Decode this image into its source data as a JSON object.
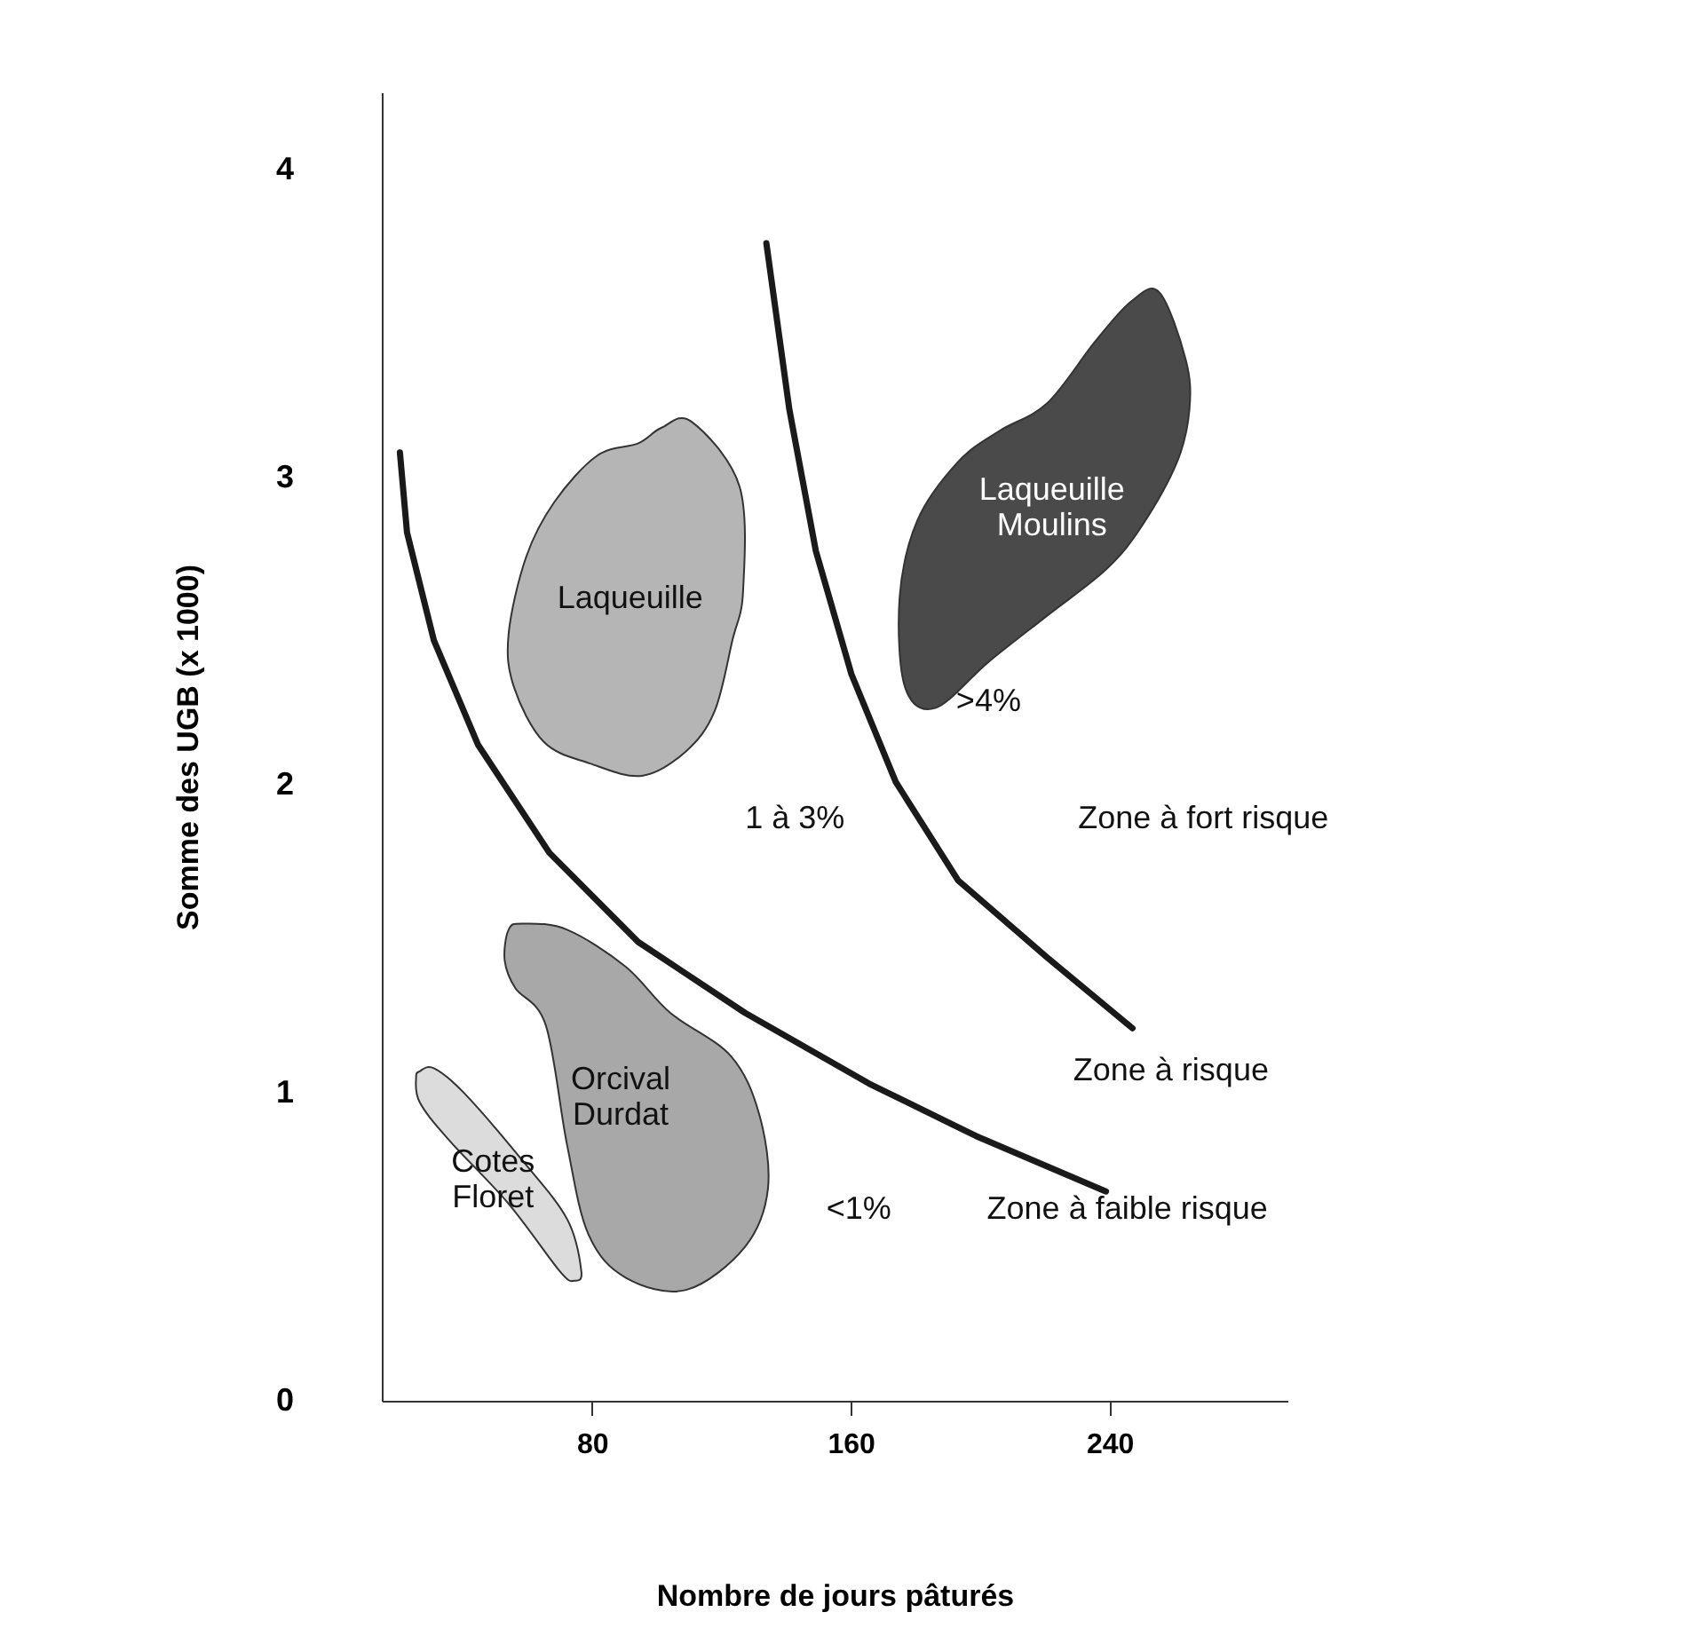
{
  "chart_data": {
    "type": "line",
    "xlabel": "Nombre de jours pâturés",
    "ylabel": "Somme des UGB (x 1000)",
    "xlim": [
      15,
      295
    ],
    "ylim": [
      0,
      4.25
    ],
    "xticks": [
      80,
      160,
      240
    ],
    "yticks": [
      0,
      1,
      2,
      3,
      4
    ],
    "grid": false,
    "marker": "none",
    "line_style": "solid",
    "series": [
      {
        "type": "line",
        "color": "#1a1a1a",
        "x": [
          20.6,
          22.8,
          31.1,
          44.8,
          66.8,
          94.3,
          127.3,
          165.7,
          198.7,
          238.9
        ],
        "values": [
          3.08,
          2.82,
          2.47,
          2.13,
          1.78,
          1.49,
          1.26,
          1.03,
          0.86,
          0.68
        ]
      },
      {
        "type": "line",
        "color": "#1a1a1a",
        "x": [
          133.9,
          141.0,
          149.2,
          160.2,
          173.9,
          193.2,
          220.7,
          247.1
        ],
        "values": [
          3.76,
          3.22,
          2.76,
          2.36,
          2.01,
          1.69,
          1.44,
          1.21
        ]
      },
      {
        "type": "area",
        "name": "Laqueuille",
        "color": "#b5b5b5",
        "x": [
          110.8,
          125.6,
          126.7,
          123.4,
          117.9,
          109.1,
          95.4,
          79.4,
          65.1,
          55.8,
          54.2,
          59.6,
          68.4,
          81.6,
          94.3,
          101.4
        ],
        "values": [
          3.18,
          2.97,
          2.63,
          2.47,
          2.24,
          2.11,
          2.03,
          2.07,
          2.14,
          2.32,
          2.49,
          2.74,
          2.92,
          3.07,
          3.11,
          3.16
        ]
      },
      {
        "type": "area",
        "name": "Laqueuille\nMoulins",
        "color": "#4a4a4a",
        "x": [
          255.4,
          263.6,
          264.7,
          260.9,
          249.9,
          238.9,
          220.7,
          202.6,
          186.1,
          176.7,
          175.1,
          180.6,
          193.2,
          205.9,
          220.7,
          235.5,
          246.6
        ],
        "values": [
          3.6,
          3.38,
          3.22,
          3.05,
          2.84,
          2.7,
          2.55,
          2.4,
          2.25,
          2.32,
          2.61,
          2.86,
          3.05,
          3.15,
          3.24,
          3.44,
          3.57
        ]
      },
      {
        "type": "area",
        "name": "Orcival\nDurdat",
        "color": "#a8a8a8",
        "x": [
          58.5,
          72.3,
          90.4,
          104.2,
          122.9,
          131.7,
          134.4,
          127.3,
          109.1,
          90.4,
          78.9,
          72.3,
          65.7,
          56.3,
          53.0,
          54.2
        ],
        "values": [
          1.55,
          1.53,
          1.41,
          1.26,
          1.12,
          0.93,
          0.69,
          0.5,
          0.36,
          0.4,
          0.54,
          0.83,
          1.22,
          1.34,
          1.43,
          1.53
        ]
      },
      {
        "type": "area",
        "name": "Cotes\nFloret",
        "color": "#dcdcdc",
        "x": [
          26.7,
          31.1,
          40.4,
          58.5,
          72.3,
          76.7,
          74.5,
          70.1,
          54.2,
          35.5,
          26.7,
          25.6
        ],
        "values": [
          1.07,
          1.08,
          1.0,
          0.78,
          0.59,
          0.42,
          0.39,
          0.42,
          0.64,
          0.85,
          0.97,
          1.05
        ]
      }
    ],
    "annotations": [
      ">4%",
      "1 à 3%",
      "<1%",
      "Zone à fort risque",
      "Zone à risque",
      "Zone à faible risque"
    ]
  }
}
